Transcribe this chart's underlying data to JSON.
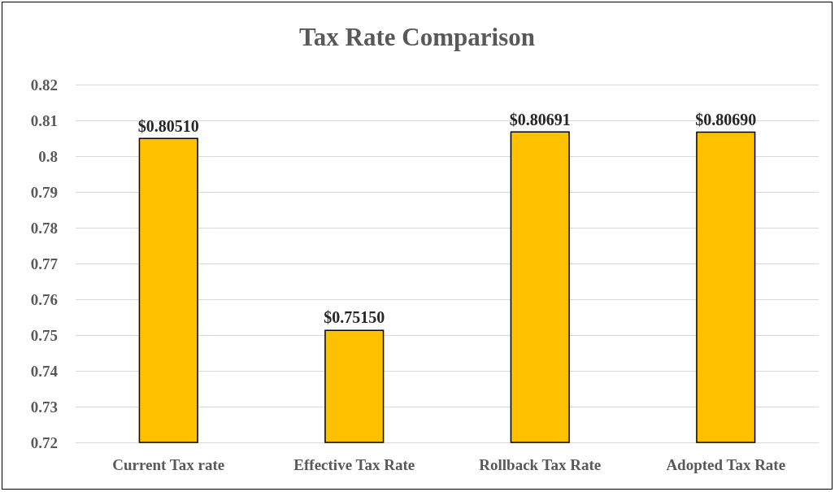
{
  "chart_data": {
    "type": "bar",
    "title": "Tax Rate Comparison",
    "categories": [
      "Current Tax rate",
      "Effective Tax Rate",
      "Rollback Tax Rate",
      "Adopted Tax Rate"
    ],
    "values": [
      0.8051,
      0.7515,
      0.80691,
      0.8069
    ],
    "value_labels": [
      "$0.80510",
      "$0.75150",
      "$0.80691",
      "$0.80690"
    ],
    "color": "#ffc000",
    "ylim": [
      0.72,
      0.82
    ],
    "yticks": [
      0.72,
      0.73,
      0.74,
      0.75,
      0.76,
      0.77,
      0.78,
      0.79,
      0.8,
      0.81,
      0.82
    ],
    "grid": "y"
  }
}
